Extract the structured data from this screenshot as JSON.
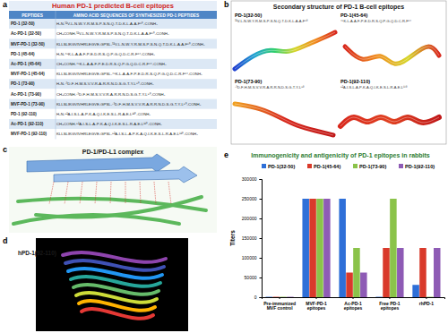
{
  "panel_labels": [
    "a",
    "b",
    "c",
    "d",
    "e"
  ],
  "table": {
    "title": "Human PD-1 predicted B-cell epitopes",
    "header": [
      "PEPTIDES",
      "AMINO ACID SEQUENCES OF SYNTHESIZED PD-1 PEPTIDES"
    ],
    "rows": [
      [
        "PD-1 (32-50)",
        "H₂N-³²V-L-N-W-Y-R-M-S-P-S-N-Q-T-D-K-L-A-A-F⁵⁰-CONH₂"
      ],
      [
        "Ac-PD-1 (32-50)",
        "CH₃CONH-³²V-L-N-W-Y-R-M-S-P-S-N-Q-T-D-K-L-A-A-F⁵⁰-CONH₂"
      ],
      [
        "MVF-PD-1 (32-50)",
        "KLLSLIKGVIVHRLEGVE-GPSL-³²V-L-N-W-Y-R-M-S-P-S-N-Q-T-D-K-L-A-A-F⁵⁰-CONH₂"
      ],
      [
        "PD-1 (45-64)",
        "H₂N-⁴⁵K-L-A-A-F-P-E-D-R-S-Q-P-G-Q-D-C-R-F⁶⁴-CONH₂"
      ],
      [
        "Ac-PD-1 (45-64)",
        "CH₃CONH-⁴⁵K-L-A-A-F-P-E-D-R-S-Q-P-G-Q-D-C-R-F⁶⁴-CONH₂"
      ],
      [
        "MVF-PD-1 (45-64)",
        "KLLSLIKGVIVHRLEGVE-GPSL-⁴⁵K-L-A-A-F-P-E-D-R-S-Q-P-G-Q-D-C-R-F⁶⁴-CONH₂"
      ],
      [
        "PD-1 (73-90)",
        "H₂N-⁷³D-F-H-M-S-V-V-R-A-R-R-N-D-S-G-T-Y-L⁹⁰-CONH₂"
      ],
      [
        "Ac-PD-1 (73-90)",
        "CH₃CONH-⁷³D-F-H-M-S-V-V-R-A-R-R-N-D-S-G-T-Y-L⁹⁰-CONH₂"
      ],
      [
        "MVF-PD-1 (73-90)",
        "KLLSLIKGVIVHRLEGVE-GPSL-⁷³D-F-H-M-S-V-V-R-A-R-R-N-D-S-G-T-Y-L⁹⁰-CONH₂"
      ],
      [
        "PD-1 (92-110)",
        "H₂N-⁹²A-I-S-L-A-P-K-A-Q-I-K-E-S-L-R-A-E-L¹¹⁰-CONH₂"
      ],
      [
        "Ac-PD-1 (92-110)",
        "CH₃CONH-⁹²A-I-S-L-A-P-K-A-Q-I-K-E-S-L-R-A-E-L¹¹⁰-CONH₂"
      ],
      [
        "MVF-PD-1 (92-110)",
        "KLLSLIKGVIVHRLEGVE-GPSL-⁹²A-I-S-L-A-P-K-A-Q-I-K-E-S-L-R-A-E-L¹¹⁰-CONH₂"
      ]
    ]
  },
  "structures": {
    "title": "Secondary structure of PD-1 B-cell epitopes",
    "items": [
      {
        "label": "PD-1(32-50)",
        "sequence": "³²V-L-N-W-Y-R-M-S-P-S-N-Q-T-D-K-L-A-A-F⁵⁰"
      },
      {
        "label": "PD-1(45-64)",
        "sequence": "⁴⁵K-L-A-A-F-P-E-D-R-S-Q-P-G-Q-D-C-R-F⁶⁴"
      },
      {
        "label": "PD-1(73-90)",
        "sequence": "⁷³D-F-H-M-S-V-V-R-A-R-R-N-D-S-G-T-Y-L⁹⁰"
      },
      {
        "label": "PD-1(92-110)",
        "sequence": "⁹²A-I-S-L-A-P-K-A-Q-I-K-E-S-L-R-A-E-L¹¹⁰"
      }
    ]
  },
  "complex": {
    "title": "PD-1/PD-L1 complex"
  },
  "model": {
    "title": "hPD-1(92-110)"
  },
  "chart_data": {
    "type": "bar",
    "title": "Immunogenicity and antigenicity of PD-1 epitopes in rabbits",
    "y_label": "Titers",
    "categories": [
      "Pre-immunized MVF control",
      "MVF-PD-1 epitopes",
      "Ac-PD-1 epitopes",
      "Free PD-1 epitopes",
      "rhPD-1"
    ],
    "series": [
      {
        "name": "PD-1(32-50)",
        "color": "#2e6fd8",
        "values": [
          1000,
          250000,
          250000,
          1000,
          31250
        ]
      },
      {
        "name": "PD-1(45-64)",
        "color": "#d93a2b",
        "values": [
          1000,
          250000,
          62500,
          125000,
          125000
        ]
      },
      {
        "name": "PD-1(73-90)",
        "color": "#8bc34a",
        "values": [
          1000,
          250000,
          125000,
          250000,
          1000
        ]
      },
      {
        "name": "PD-1(92-110)",
        "color": "#8e5bb5",
        "values": [
          1000,
          250000,
          62500,
          125000,
          125000
        ]
      }
    ],
    "ylim": [
      0,
      300000
    ],
    "yticks": [
      0,
      50000,
      100000,
      150000,
      200000,
      250000,
      300000
    ],
    "legend": "top"
  }
}
